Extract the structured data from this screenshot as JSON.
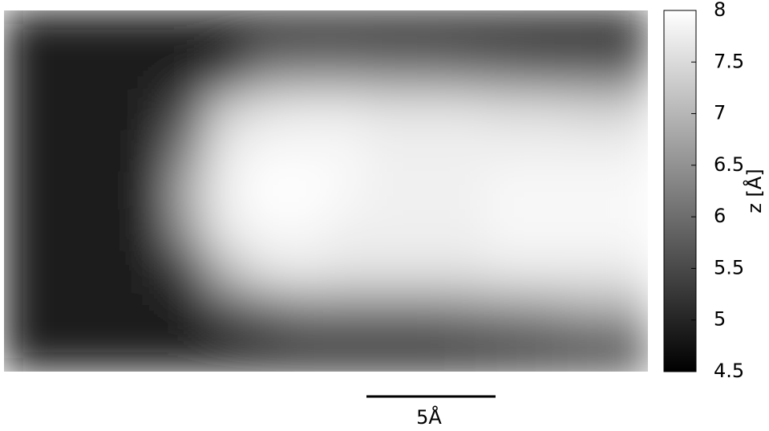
{
  "chart_data": {
    "type": "heatmap",
    "colormap": [
      "#000000",
      "#ffffff"
    ],
    "colorbar_label": "z [Å]",
    "zlim": [
      4.5,
      8
    ],
    "zticks": [
      4.5,
      5,
      5.5,
      6,
      6.5,
      7,
      7.5,
      8
    ],
    "scale_bar_label": "5Å",
    "z": [
      [
        4.9,
        4.9,
        4.9,
        4.9,
        4.9,
        4.9,
        4.9,
        4.9,
        4.9,
        4.9,
        4.9,
        4.9,
        4.9,
        4.9,
        4.9,
        4.9
      ],
      [
        4.9,
        4.9,
        4.9,
        4.9,
        4.9,
        5.3,
        6.3,
        6.4,
        6.4,
        6.3,
        6.3,
        6.2,
        6.1,
        6.0,
        6.0,
        5.9
      ],
      [
        4.9,
        4.9,
        4.9,
        4.9,
        5.6,
        7.3,
        7.6,
        7.7,
        7.7,
        7.6,
        7.6,
        7.6,
        7.5,
        7.5,
        7.4,
        7.4
      ],
      [
        4.9,
        4.9,
        4.9,
        4.9,
        6.3,
        7.7,
        7.9,
        7.9,
        7.9,
        7.8,
        7.8,
        7.8,
        7.8,
        7.8,
        7.8,
        7.8
      ],
      [
        4.9,
        4.9,
        4.9,
        4.9,
        6.8,
        7.8,
        8.0,
        8.0,
        7.9,
        7.8,
        7.8,
        7.8,
        7.9,
        7.9,
        7.9,
        7.9
      ],
      [
        4.9,
        4.9,
        4.9,
        4.9,
        6.5,
        7.7,
        7.9,
        7.9,
        7.8,
        7.8,
        7.8,
        7.8,
        7.9,
        7.9,
        7.9,
        7.9
      ],
      [
        4.9,
        4.9,
        4.9,
        4.9,
        5.4,
        7.0,
        7.6,
        7.7,
        7.6,
        7.6,
        7.6,
        7.6,
        7.7,
        7.7,
        7.7,
        7.7
      ],
      [
        4.9,
        4.9,
        4.9,
        4.9,
        4.9,
        5.6,
        6.0,
        6.3,
        6.3,
        6.3,
        6.3,
        6.4,
        6.5,
        6.6,
        6.8,
        6.8
      ],
      [
        4.9,
        4.9,
        4.9,
        4.9,
        4.9,
        4.9,
        4.9,
        4.9,
        4.9,
        4.9,
        4.9,
        5.0,
        5.1,
        5.2,
        5.3,
        5.3
      ]
    ]
  }
}
